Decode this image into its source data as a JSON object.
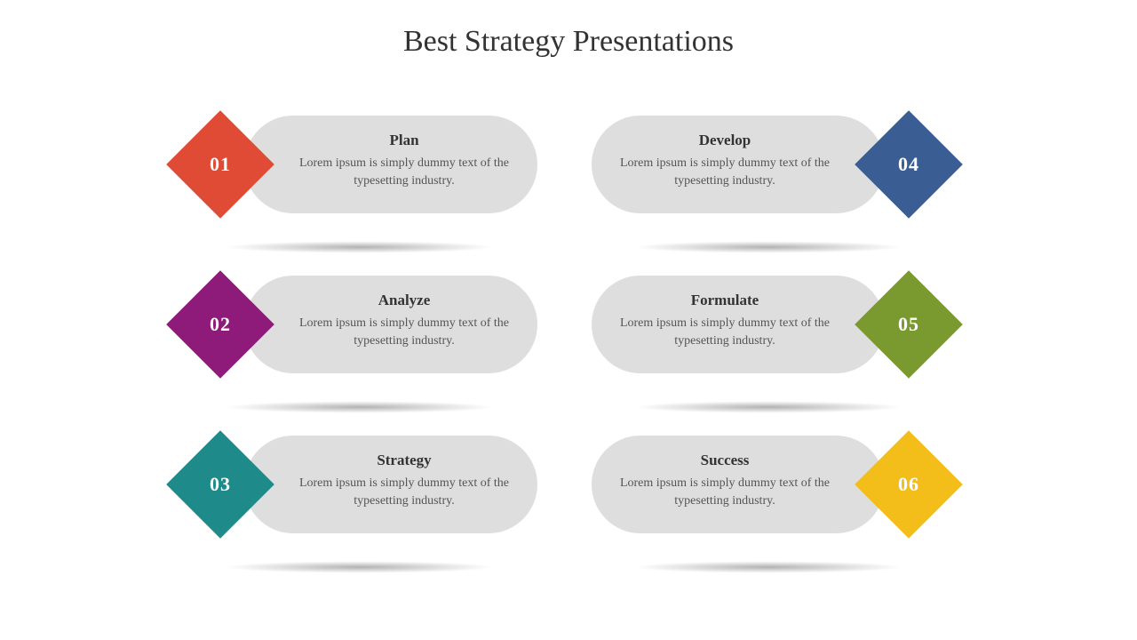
{
  "type": "infographic",
  "layout": "2x3-grid",
  "background_color": "#ffffff",
  "pill_color": "#dedede",
  "pill_radius": 55,
  "diamond_size": 86,
  "number_color": "#ffffff",
  "title": {
    "text": "Best Strategy Presentations",
    "fontsize": 34,
    "color": "#333333"
  },
  "title_font": "Georgia",
  "body_font": "Georgia",
  "heading_fontsize": 17,
  "heading_color": "#333333",
  "desc_fontsize": 14,
  "desc_color": "#555555",
  "shadow_color": "rgba(0,0,0,0.30)",
  "items": [
    {
      "num": "01",
      "side": "left",
      "color": "#e04b36",
      "heading": "Plan",
      "desc": "Lorem ipsum is simply dummy text of the typesetting industry."
    },
    {
      "num": "04",
      "side": "right",
      "color": "#3a5e94",
      "heading": "Develop",
      "desc": "Lorem ipsum is simply dummy text of the typesetting industry."
    },
    {
      "num": "02",
      "side": "left",
      "color": "#8e1a7a",
      "heading": "Analyze",
      "desc": "Lorem ipsum is simply dummy text of the typesetting industry."
    },
    {
      "num": "05",
      "side": "right",
      "color": "#7a9a2f",
      "heading": "Formulate",
      "desc": "Lorem ipsum is simply dummy text of the typesetting industry."
    },
    {
      "num": "03",
      "side": "left",
      "color": "#1e8a8a",
      "heading": "Strategy",
      "desc": "Lorem ipsum is simply dummy text of the typesetting industry."
    },
    {
      "num": "06",
      "side": "right",
      "color": "#f3bd1a",
      "heading": "Success",
      "desc": "Lorem ipsum is simply dummy text of the typesetting industry."
    }
  ]
}
